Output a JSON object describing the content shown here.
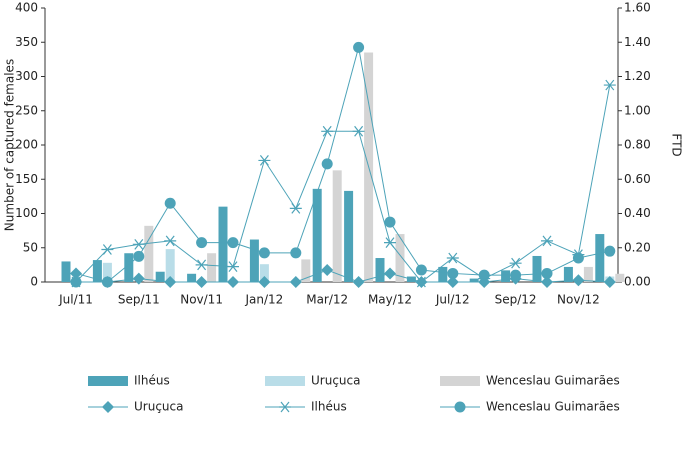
{
  "chart_data": {
    "type": "bar+line",
    "y_label": "Number of captured females",
    "y2_label": "FTD",
    "categories": [
      "Jul/11",
      null,
      "Sep/11",
      null,
      "Nov/11",
      null,
      "Jan/12",
      null,
      "Mar/12",
      null,
      "May/12",
      null,
      "Jul/12",
      null,
      "Sep/12",
      null,
      "Nov/12",
      null
    ],
    "ylim": [
      0,
      400
    ],
    "yticks": [
      0,
      50,
      100,
      150,
      200,
      250,
      300,
      350,
      400
    ],
    "y2lim": [
      0,
      1.6
    ],
    "y2ticks": [
      {
        "value": 0,
        "label": "0.00"
      },
      {
        "value": 0.2,
        "label": "0.20"
      },
      {
        "value": 0.4,
        "label": "0.40"
      },
      {
        "value": 0.6,
        "label": "0.60"
      },
      {
        "value": 0.8,
        "label": "0.80"
      },
      {
        "value": 1,
        "label": "1.00"
      },
      {
        "value": 1.2,
        "label": "1.20"
      },
      {
        "value": 1.4,
        "label": "1.40"
      },
      {
        "value": 1.6,
        "label": "1.60"
      }
    ],
    "series": [
      {
        "name": "Ilhéus",
        "kind": "bar",
        "color": "#4da3b8",
        "values": [
          30,
          32,
          42,
          15,
          12,
          110,
          62,
          0,
          136,
          133,
          35,
          8,
          22,
          5,
          17,
          38,
          22,
          70
        ]
      },
      {
        "name": "Uruçuca",
        "kind": "bar",
        "color": "#b9dde8",
        "values": [
          0,
          28,
          0,
          48,
          0,
          0,
          26,
          0,
          0,
          0,
          0,
          0,
          0,
          8,
          0,
          0,
          0,
          8
        ]
      },
      {
        "name": "Wenceslau Guimarães",
        "kind": "bar",
        "color": "#d4d4d4",
        "values": [
          0,
          0,
          82,
          0,
          42,
          0,
          0,
          33,
          163,
          335,
          70,
          0,
          0,
          0,
          0,
          0,
          22,
          12
        ]
      },
      {
        "name": "Uruçuca",
        "kind": "line",
        "axis": "y2",
        "marker": "diamond",
        "color": "#4da3b8",
        "values": [
          0.05,
          0,
          0.02,
          0,
          0,
          0,
          0,
          0,
          0.07,
          0,
          0.05,
          0,
          0,
          0,
          0.02,
          0,
          0.01,
          0
        ]
      },
      {
        "name": "Ilhéus",
        "kind": "line",
        "axis": "y2",
        "marker": "star",
        "color": "#4da3b8",
        "values": [
          0,
          0.19,
          0.22,
          0.24,
          0.1,
          0.09,
          0.71,
          0.43,
          0.88,
          0.88,
          0.23,
          0,
          0.14,
          0.02,
          0.11,
          0.24,
          0.16,
          1.15
        ]
      },
      {
        "name": "Wenceslau Guimarães",
        "kind": "line",
        "axis": "y2",
        "marker": "circle",
        "color": "#4da3b8",
        "values": [
          0,
          0,
          0.15,
          0.46,
          0.23,
          0.23,
          0.17,
          0.17,
          0.69,
          1.37,
          0.35,
          0.07,
          0.05,
          0.04,
          0.04,
          0.05,
          0.14,
          0.18
        ]
      }
    ]
  }
}
